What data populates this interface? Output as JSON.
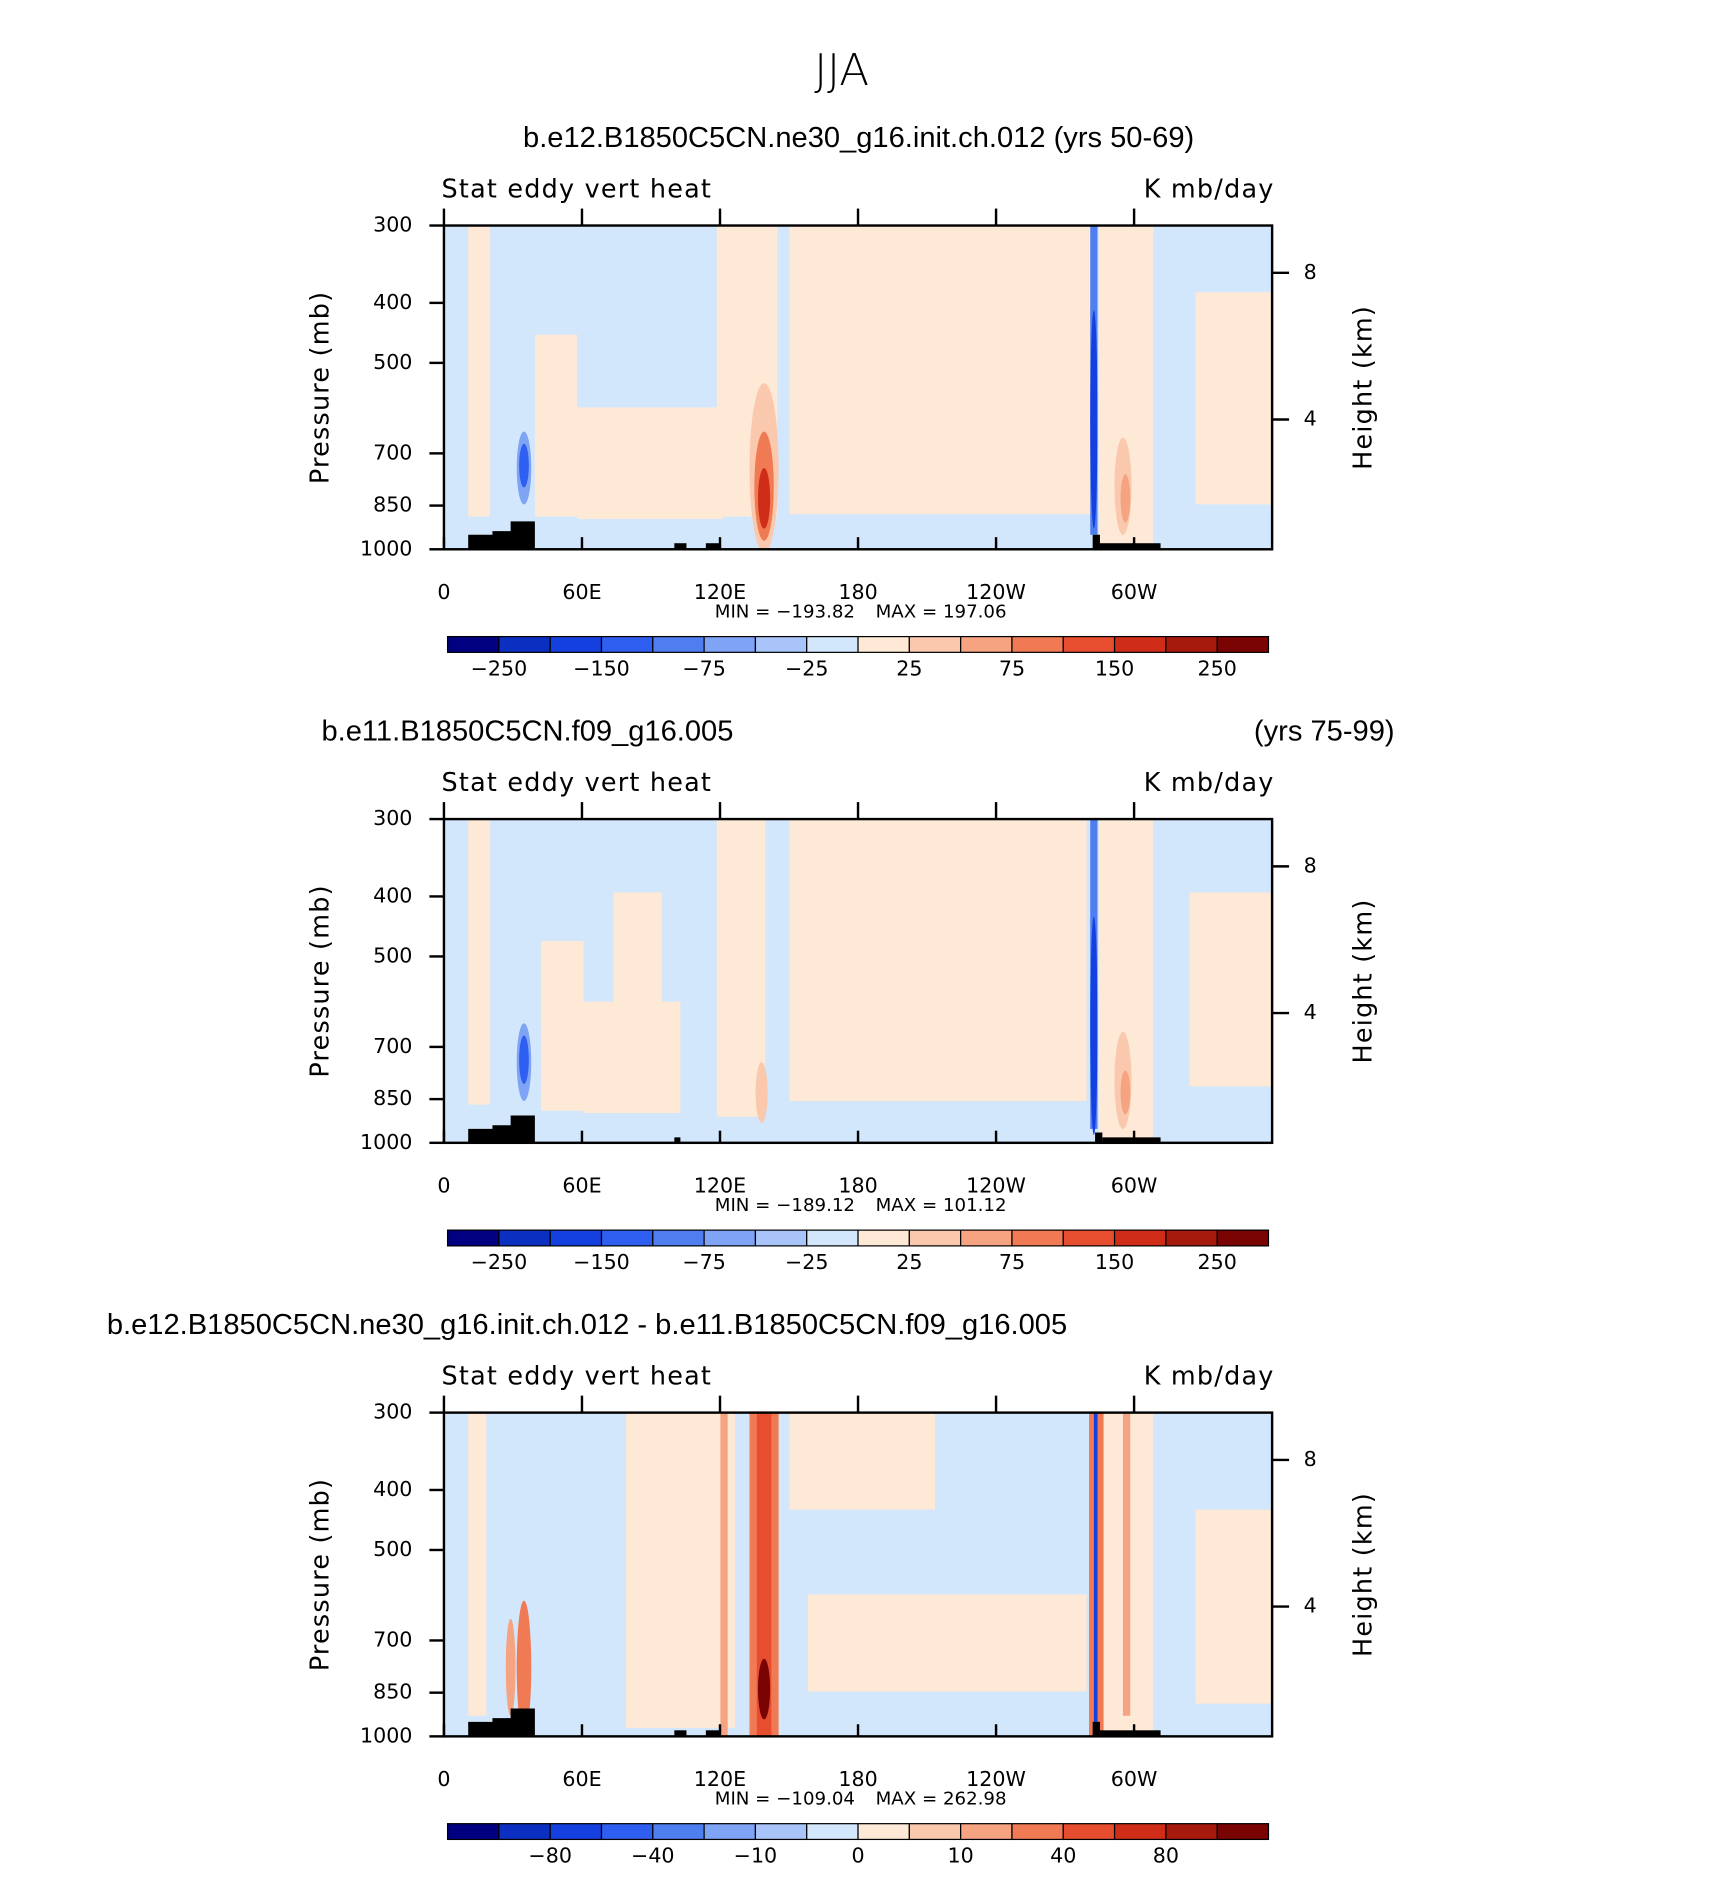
{
  "title": "JJA",
  "chart_data": [
    {
      "type": "contour",
      "title": "b.e12.B1850C5CN.ne30_g16.init.ch.012 (yrs 50-69)",
      "left_label": "Stat eddy vert heat",
      "right_label": "K mb/day",
      "ylabel": "Pressure (mb)",
      "y2label": "Height (km)",
      "xlim": [
        0,
        360
      ],
      "xticks": [
        0,
        {
          "value": 60,
          "label": "60E"
        },
        {
          "value": 120,
          "label": "120E"
        },
        180,
        {
          "value": 240,
          "label": "120W"
        },
        {
          "value": 300,
          "label": "60W"
        }
      ],
      "ylim": [
        1000,
        300
      ],
      "log_y": true,
      "yticks": [
        300,
        400,
        500,
        700,
        850,
        1000
      ],
      "y2lim": [
        0.46,
        9.29
      ],
      "y2ticks": [
        4,
        8
      ],
      "min_text": "MIN = −193.82",
      "max_text": "MAX = 197.06",
      "colorbar": {
        "colors": [
          "#000080",
          "#0b2fc0",
          "#1540e0",
          "#2f5ff0",
          "#4f7ef0",
          "#7fa3f5",
          "#a9c4f8",
          "#d2e6fc",
          "#fde9d6",
          "#f9c8ad",
          "#f5a381",
          "#f07a54",
          "#e74d2f",
          "#cf2d18",
          "#a6190d",
          "#7a0404"
        ],
        "ticks": [
          {
            "value": -250,
            "label": "−250"
          },
          {
            "value": -150,
            "label": "−150"
          },
          {
            "value": -75,
            "label": "−75"
          },
          {
            "value": -25,
            "label": "−25"
          },
          25,
          75,
          150,
          250
        ]
      }
    },
    {
      "type": "contour",
      "title": "b.e11.B1850C5CN.f09_g16.005",
      "title_right": "(yrs 75-99)",
      "left_label": "Stat eddy vert heat",
      "right_label": "K mb/day",
      "ylabel": "Pressure (mb)",
      "y2label": "Height (km)",
      "xlim": [
        0,
        360
      ],
      "xticks": [
        0,
        {
          "value": 60,
          "label": "60E"
        },
        {
          "value": 120,
          "label": "120E"
        },
        180,
        {
          "value": 240,
          "label": "120W"
        },
        {
          "value": 300,
          "label": "60W"
        }
      ],
      "ylim": [
        1000,
        300
      ],
      "log_y": true,
      "yticks": [
        300,
        400,
        500,
        700,
        850,
        1000
      ],
      "y2lim": [
        0.46,
        9.29
      ],
      "y2ticks": [
        4,
        8
      ],
      "min_text": "MIN = −189.12",
      "max_text": "MAX = 101.12",
      "colorbar": {
        "colors": [
          "#000080",
          "#0b2fc0",
          "#1540e0",
          "#2f5ff0",
          "#4f7ef0",
          "#7fa3f5",
          "#a9c4f8",
          "#d2e6fc",
          "#fde9d6",
          "#f9c8ad",
          "#f5a381",
          "#f07a54",
          "#e74d2f",
          "#cf2d18",
          "#a6190d",
          "#7a0404"
        ],
        "ticks": [
          {
            "value": -250,
            "label": "−250"
          },
          {
            "value": -150,
            "label": "−150"
          },
          {
            "value": -75,
            "label": "−75"
          },
          {
            "value": -25,
            "label": "−25"
          },
          25,
          75,
          150,
          250
        ]
      }
    },
    {
      "type": "contour",
      "title": "b.e12.B1850C5CN.ne30_g16.init.ch.012 - b.e11.B1850C5CN.f09_g16.005",
      "left_label": "Stat eddy vert heat",
      "right_label": "K mb/day",
      "ylabel": "Pressure (mb)",
      "y2label": "Height (km)",
      "xlim": [
        0,
        360
      ],
      "xticks": [
        0,
        {
          "value": 60,
          "label": "60E"
        },
        {
          "value": 120,
          "label": "120E"
        },
        180,
        {
          "value": 240,
          "label": "120W"
        },
        {
          "value": 300,
          "label": "60W"
        }
      ],
      "ylim": [
        1000,
        300
      ],
      "log_y": true,
      "yticks": [
        300,
        400,
        500,
        700,
        850,
        1000
      ],
      "y2lim": [
        0.46,
        9.29
      ],
      "y2ticks": [
        4,
        8
      ],
      "min_text": "MIN = −109.04",
      "max_text": "MAX = 262.98",
      "colorbar": {
        "colors": [
          "#000080",
          "#0b2fc0",
          "#1540e0",
          "#2f5ff0",
          "#4f7ef0",
          "#7fa3f5",
          "#a9c4f8",
          "#d2e6fc",
          "#fde9d6",
          "#f9c8ad",
          "#f5a381",
          "#f07a54",
          "#e74d2f",
          "#cf2d18",
          "#a6190d",
          "#7a0404"
        ],
        "ticks": [
          {
            "value": -80,
            "label": "−80"
          },
          {
            "value": -40,
            "label": "−40"
          },
          {
            "value": -10,
            "label": "−10"
          },
          0,
          10,
          40,
          80
        ]
      }
    }
  ]
}
